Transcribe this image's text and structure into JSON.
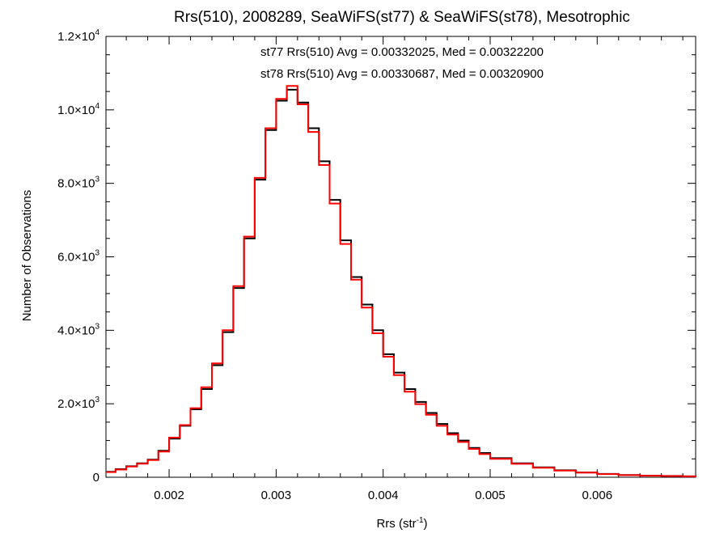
{
  "chart_data": {
    "type": "line",
    "title": "Rrs(510), 2008289, SeaWiFS(st77) & SeaWiFS(st78), Mesotrophic",
    "xlabel": "Rrs (str",
    "xlabel_sup": "-1",
    "xlabel_close": ")",
    "ylabel": "Number of Observations",
    "xlim": [
      0.00141,
      0.00692
    ],
    "ylim": [
      0,
      12000
    ],
    "x_ticks": [
      {
        "value": 0.002,
        "label": "0.002"
      },
      {
        "value": 0.003,
        "label": "0.003"
      },
      {
        "value": 0.004,
        "label": "0.004"
      },
      {
        "value": 0.005,
        "label": "0.005"
      },
      {
        "value": 0.006,
        "label": "0.006"
      }
    ],
    "y_ticks": [
      {
        "value": 0,
        "mantissa": "0",
        "exp": ""
      },
      {
        "value": 2000,
        "mantissa": "2.0×10",
        "exp": "3"
      },
      {
        "value": 4000,
        "mantissa": "4.0×10",
        "exp": "3"
      },
      {
        "value": 6000,
        "mantissa": "6.0×10",
        "exp": "3"
      },
      {
        "value": 8000,
        "mantissa": "8.0×10",
        "exp": "3"
      },
      {
        "value": 10000,
        "mantissa": "1.0×10",
        "exp": "4"
      },
      {
        "value": 12000,
        "mantissa": "1.2×10",
        "exp": "4"
      }
    ],
    "annotations": [
      {
        "text": "st77 Rrs(510) Avg = 0.00332025, Med = 0.00322200",
        "color": "#000000"
      },
      {
        "text": "st78 Rrs(510) Avg = 0.00330687, Med = 0.00320900",
        "color": "#ff0000"
      }
    ],
    "series": [
      {
        "name": "st77",
        "color": "#000000",
        "x": [
          0.00141,
          0.0015,
          0.0016,
          0.0017,
          0.0018,
          0.0019,
          0.002,
          0.0021,
          0.0022,
          0.0023,
          0.0024,
          0.0025,
          0.0026,
          0.0027,
          0.0028,
          0.0029,
          0.003,
          0.0031,
          0.0032,
          0.0033,
          0.0034,
          0.0035,
          0.0036,
          0.0037,
          0.0038,
          0.0039,
          0.004,
          0.0041,
          0.0042,
          0.0043,
          0.0044,
          0.0045,
          0.0046,
          0.0047,
          0.0048,
          0.0049,
          0.005,
          0.0052,
          0.0054,
          0.0056,
          0.0058,
          0.006,
          0.0062,
          0.0064,
          0.0066,
          0.0068,
          0.00692
        ],
        "y": [
          150,
          220,
          300,
          380,
          480,
          720,
          1050,
          1400,
          1850,
          2400,
          3050,
          3950,
          5150,
          6500,
          8100,
          9450,
          10250,
          10550,
          10200,
          9500,
          8600,
          7550,
          6450,
          5450,
          4700,
          4000,
          3350,
          2850,
          2400,
          2050,
          1750,
          1450,
          1200,
          1000,
          800,
          660,
          520,
          380,
          270,
          190,
          130,
          90,
          60,
          45,
          35,
          25,
          20
        ]
      },
      {
        "name": "st78",
        "color": "#ff0000",
        "x": [
          0.00141,
          0.0015,
          0.0016,
          0.0017,
          0.0018,
          0.0019,
          0.002,
          0.0021,
          0.0022,
          0.0023,
          0.0024,
          0.0025,
          0.0026,
          0.0027,
          0.0028,
          0.0029,
          0.003,
          0.0031,
          0.0032,
          0.0033,
          0.0034,
          0.0035,
          0.0036,
          0.0037,
          0.0038,
          0.0039,
          0.004,
          0.0041,
          0.0042,
          0.0043,
          0.0044,
          0.0045,
          0.0046,
          0.0047,
          0.0048,
          0.0049,
          0.005,
          0.0052,
          0.0054,
          0.0056,
          0.0058,
          0.006,
          0.0062,
          0.0064,
          0.0066,
          0.0068,
          0.00692
        ],
        "y": [
          140,
          210,
          290,
          370,
          470,
          700,
          1080,
          1420,
          1880,
          2450,
          3100,
          4000,
          5200,
          6550,
          8150,
          9500,
          10300,
          10650,
          10150,
          9400,
          8500,
          7450,
          6350,
          5380,
          4620,
          3920,
          3280,
          2780,
          2330,
          1990,
          1700,
          1400,
          1160,
          960,
          770,
          630,
          500,
          365,
          260,
          180,
          125,
          85,
          58,
          42,
          32,
          24,
          18
        ]
      }
    ]
  }
}
